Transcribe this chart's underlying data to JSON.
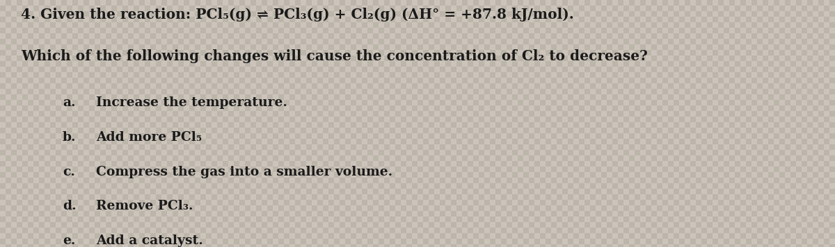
{
  "background_color": "#c8c4be",
  "tile_color_light": "#ccc8c2",
  "tile_color_dark": "#b8b4ae",
  "text_color": "#1a1a1a",
  "fig_width": 12.0,
  "fig_height": 3.56,
  "line1": "4. Given the reaction: PCl₅(g) ⇌ PCl₃(g) + Cl₂(g) (ΔH° = +87.8 kJ/mol).",
  "line2": "Which of the following changes will cause the concentration of Cl₂ to decrease?",
  "options": [
    {
      "label": "a.",
      "text": "Increase the temperature."
    },
    {
      "label": "b.",
      "text": "Add more PCl₅"
    },
    {
      "label": "c.",
      "text": "Compress the gas into a smaller volume."
    },
    {
      "label": "d.",
      "text": "Remove PCl₃."
    },
    {
      "label": "e.",
      "text": "Add a catalyst."
    }
  ],
  "font_size_header": 14.5,
  "font_size_options": 13.5,
  "font_family": "DejaVu Serif",
  "tile_size": 8
}
